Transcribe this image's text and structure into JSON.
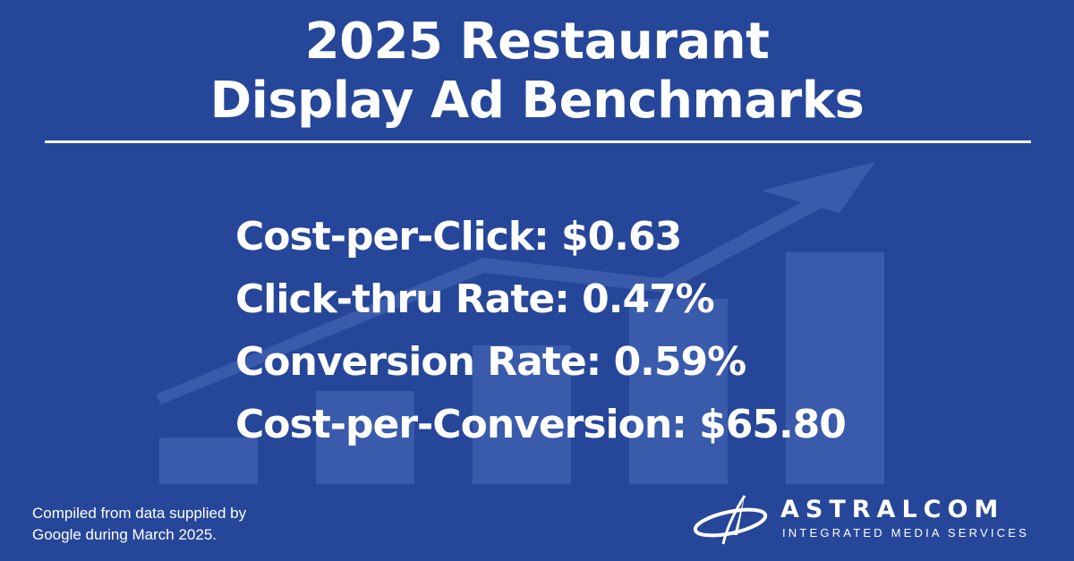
{
  "title": {
    "line1": "2025 Restaurant",
    "line2": "Display Ad Benchmarks"
  },
  "stats": [
    {
      "label": "Cost-per-Click: $0.63"
    },
    {
      "label": "Click-thru Rate: 0.47%"
    },
    {
      "label": "Conversion Rate: 0.59%"
    },
    {
      "label": "Cost-per-Conversion: $65.80"
    }
  ],
  "footnote": {
    "line1": "Compiled from data supplied by",
    "line2": "Google during March 2025."
  },
  "logo": {
    "name": "ASTRALCOM",
    "tagline": "INTEGRATED MEDIA SERVICES",
    "icon": "orbit-star-icon"
  },
  "background": {
    "icon": "growth-bars-arrow-icon",
    "bar_levels": [
      0.2,
      0.4,
      0.6,
      0.8,
      1.0
    ]
  },
  "colors": {
    "background": "#26469a",
    "text": "#ffffff",
    "graphic": "#3a5aab"
  }
}
